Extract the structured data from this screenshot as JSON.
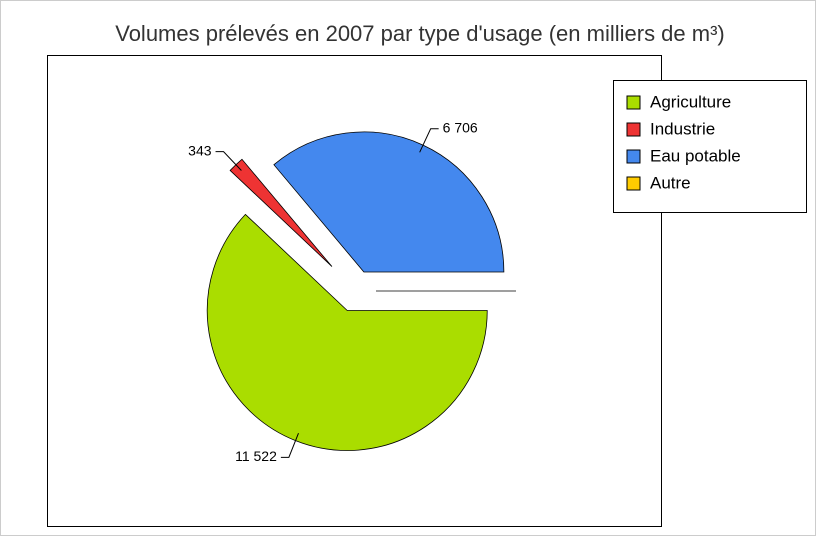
{
  "chart_data": {
    "type": "pie",
    "title": "Volumes prélevés en 2007 par type d'usage (en milliers de m³)",
    "categories": [
      "Agriculture",
      "Industrie",
      "Eau potable",
      "Autre"
    ],
    "values": [
      11522,
      343,
      6706,
      0
    ],
    "value_labels": [
      "11 522",
      "343",
      "6 706",
      null
    ],
    "colors": [
      "#aadd00",
      "#ee3333",
      "#4488ee",
      "#ffcc00"
    ],
    "legend": "top-right"
  }
}
